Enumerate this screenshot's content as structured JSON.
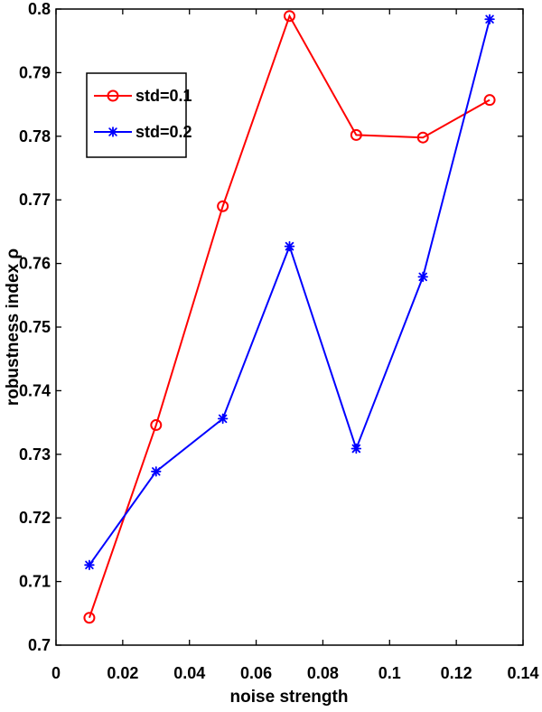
{
  "chart_data": {
    "type": "line",
    "title": "",
    "xlabel": "noise strength",
    "ylabel": "robustness index ρ",
    "xlim": [
      0,
      0.14
    ],
    "ylim": [
      0.7,
      0.8
    ],
    "xticks": [
      "0",
      "0.02",
      "0.04",
      "0.06",
      "0.08",
      "0.1",
      "0.12",
      "0.14"
    ],
    "yticks": [
      "0.7",
      "0.71",
      "0.72",
      "0.73",
      "0.74",
      "0.75",
      "0.76",
      "0.77",
      "0.78",
      "0.79",
      "0.8"
    ],
    "grid": false,
    "legend_position": "top-left",
    "x": [
      0.01,
      0.03,
      0.05,
      0.07,
      0.09,
      0.11,
      0.13
    ],
    "series": [
      {
        "name": "std=0.1",
        "color": "#ff0000",
        "marker": "circle",
        "values": [
          0.7043,
          0.7346,
          0.769,
          0.7989,
          0.7802,
          0.7798,
          0.7857
        ]
      },
      {
        "name": "std=0.2",
        "color": "#0000ff",
        "marker": "asterisk",
        "values": [
          0.7126,
          0.7273,
          0.7356,
          0.7627,
          0.7309,
          0.7579,
          0.7984
        ]
      }
    ]
  }
}
